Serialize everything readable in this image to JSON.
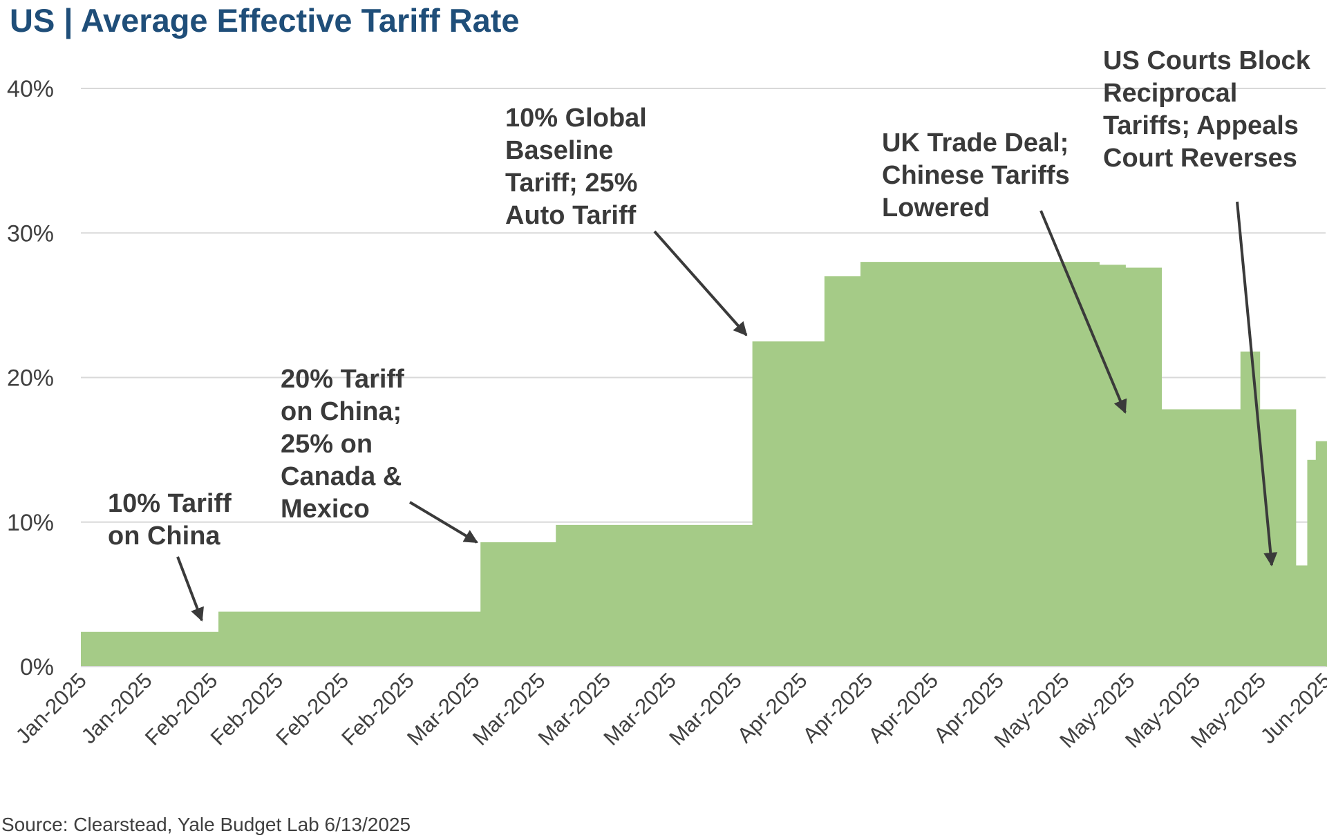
{
  "title": "US | Average Effective Tariff Rate",
  "source": "Source: Clearstead, Yale Budget Lab 6/13/2025",
  "colors": {
    "title": "#1f4e79",
    "area_fill": "#a5cb87",
    "gridline": "#d9d9d9",
    "text": "#404040",
    "annotation": "#3a3a3a"
  },
  "chart_data": {
    "type": "area",
    "title": "US | Average Effective Tariff Rate",
    "xlabel": "",
    "ylabel": "",
    "ylim": [
      0,
      40
    ],
    "y_ticks": [
      "0%",
      "10%",
      "20%",
      "30%",
      "40%"
    ],
    "x_ticks": [
      "Jan-2025",
      "Jan-2025",
      "Feb-2025",
      "Feb-2025",
      "Feb-2025",
      "Feb-2025",
      "Mar-2025",
      "Mar-2025",
      "Mar-2025",
      "Mar-2025",
      "Mar-2025",
      "Apr-2025",
      "Apr-2025",
      "Apr-2025",
      "Apr-2025",
      "May-2025",
      "May-2025",
      "May-2025",
      "May-2025",
      "Jun-2025"
    ],
    "grid": true,
    "legend": "none",
    "series": [
      {
        "values": [
          [
            0,
            2.4
          ],
          [
            2.1,
            3.8
          ],
          [
            6.1,
            8.6
          ],
          [
            7.25,
            9.8
          ],
          [
            10.25,
            22.5
          ],
          [
            11.35,
            27.0
          ],
          [
            11.9,
            28.0
          ],
          [
            15.55,
            27.8
          ],
          [
            15.95,
            27.6
          ],
          [
            16.5,
            17.8
          ],
          [
            17.7,
            21.8
          ],
          [
            18.0,
            17.8
          ],
          [
            18.55,
            7.0
          ],
          [
            18.72,
            14.3
          ],
          [
            18.85,
            15.6
          ],
          [
            19.2,
            15.6
          ]
        ]
      }
    ],
    "annotations": [
      {
        "lines": [
          "10% Tariff",
          "on China"
        ]
      },
      {
        "lines": [
          "20% Tariff",
          "on China;",
          "25% on",
          "Canada &",
          "Mexico"
        ]
      },
      {
        "lines": [
          "10% Global",
          "Baseline",
          "Tariff; 25%",
          "Auto Tariff"
        ]
      },
      {
        "lines": [
          "UK Trade Deal;",
          "Chinese Tariffs",
          "Lowered"
        ]
      },
      {
        "lines": [
          "US Courts Block",
          "Reciprocal",
          "Tariffs; Appeals",
          "Court Reverses"
        ]
      }
    ]
  }
}
